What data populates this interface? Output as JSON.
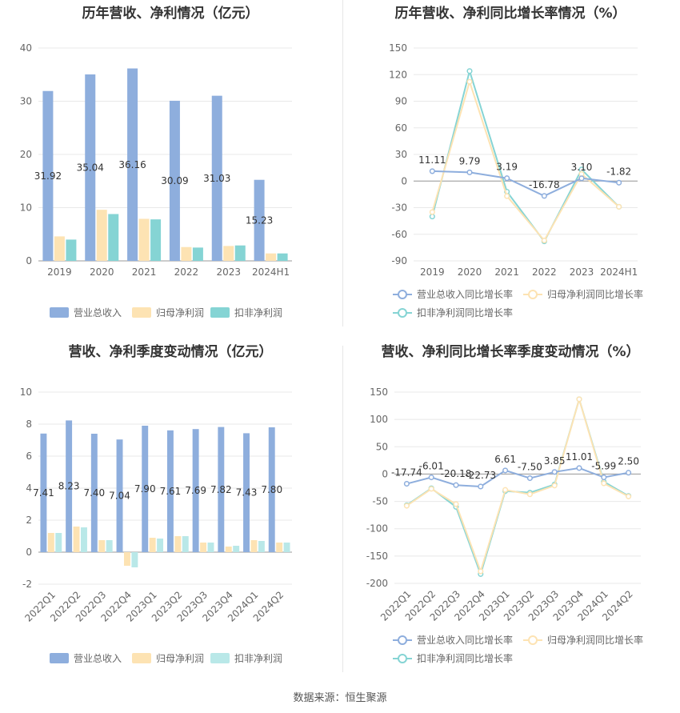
{
  "footer": {
    "source": "数据来源：恒生聚源"
  },
  "chart_data": [
    {
      "type": "bar",
      "title": "历年营收、净利情况（亿元）",
      "categories": [
        "2019",
        "2020",
        "2021",
        "2022",
        "2023",
        "2024H1"
      ],
      "ylim": [
        0,
        40
      ],
      "yticks": [
        0,
        10,
        20,
        30,
        40
      ],
      "label_series": 0,
      "legend_position": "bottom",
      "series": [
        {
          "name": "营业总收入",
          "color": "#8eaedd",
          "values": [
            31.92,
            35.04,
            36.16,
            30.09,
            31.03,
            15.23
          ]
        },
        {
          "name": "归母净利润",
          "color": "#fde3b3",
          "values": [
            4.6,
            9.6,
            7.9,
            2.6,
            2.8,
            1.4
          ]
        },
        {
          "name": "扣非净利润",
          "color": "#85d4d4",
          "values": [
            4.0,
            8.8,
            7.8,
            2.5,
            2.9,
            1.4
          ]
        }
      ]
    },
    {
      "type": "line",
      "title": "历年营收、净利同比增长率情况（%）",
      "categories": [
        "2019",
        "2020",
        "2021",
        "2022",
        "2023",
        "2024H1"
      ],
      "ylim": [
        -90,
        150
      ],
      "yticks": [
        -90,
        -60,
        -30,
        0,
        30,
        60,
        90,
        120,
        150
      ],
      "label_series": 0,
      "legend_position": "bottom",
      "series": [
        {
          "name": "营业总收入同比增长率",
          "color": "#8eaedd",
          "values": [
            11.11,
            9.79,
            3.19,
            -16.78,
            3.1,
            -1.82
          ]
        },
        {
          "name": "归母净利润同比增长率",
          "color": "#fde3b3",
          "values": [
            -35,
            112,
            -17,
            -67,
            8,
            -29
          ]
        },
        {
          "name": "扣非净利润同比增长率",
          "color": "#85d4d4",
          "values": [
            -40,
            124,
            -12,
            -68,
            13,
            -29
          ]
        }
      ]
    },
    {
      "type": "bar",
      "title": "营收、净利季度变动情况（亿元）",
      "categories": [
        "2022Q1",
        "2022Q2",
        "2022Q3",
        "2022Q4",
        "2023Q1",
        "2023Q2",
        "2023Q3",
        "2023Q4",
        "2024Q1",
        "2024Q2"
      ],
      "ylim": [
        -2,
        10
      ],
      "yticks": [
        -2,
        0,
        2,
        4,
        6,
        8,
        10
      ],
      "label_series": 0,
      "legend_position": "bottom",
      "series": [
        {
          "name": "营业总收入",
          "color": "#8eaedd",
          "values": [
            7.41,
            8.23,
            7.4,
            7.04,
            7.9,
            7.61,
            7.69,
            7.82,
            7.43,
            7.8
          ]
        },
        {
          "name": "归母净利润",
          "color": "#fde3b3",
          "values": [
            1.2,
            1.6,
            0.75,
            -0.85,
            0.9,
            1.0,
            0.6,
            0.35,
            0.75,
            0.6
          ]
        },
        {
          "name": "扣非净利润",
          "color": "#b9e8e8",
          "values": [
            1.2,
            1.55,
            0.75,
            -0.95,
            0.85,
            1.0,
            0.6,
            0.4,
            0.7,
            0.6
          ]
        }
      ]
    },
    {
      "type": "line",
      "title": "营收、净利同比增长率季度变动情况（%）",
      "categories": [
        "2022Q1",
        "2022Q2",
        "2022Q3",
        "2022Q4",
        "2023Q1",
        "2023Q2",
        "2023Q3",
        "2023Q4",
        "2024Q1",
        "2024Q2"
      ],
      "ylim": [
        -200,
        150
      ],
      "yticks": [
        -200,
        -150,
        -100,
        -50,
        0,
        50,
        100,
        150
      ],
      "label_series": 0,
      "legend_position": "bottom",
      "series": [
        {
          "name": "营业总收入同比增长率",
          "color": "#8eaedd",
          "values": [
            -17.74,
            -6.01,
            -20.18,
            -22.73,
            6.61,
            -7.5,
            3.85,
            11.01,
            -5.99,
            2.5
          ]
        },
        {
          "name": "归母净利润同比增长率",
          "color": "#fde3b3",
          "values": [
            -58,
            -27,
            -55,
            -178,
            -29,
            -37,
            -21,
            137,
            -17,
            -41
          ]
        },
        {
          "name": "扣非净利润同比增长率",
          "color": "#85d4d4",
          "values": [
            -57,
            -26,
            -60,
            -183,
            -31,
            -34,
            -19,
            137,
            -14,
            -40
          ]
        }
      ]
    }
  ]
}
